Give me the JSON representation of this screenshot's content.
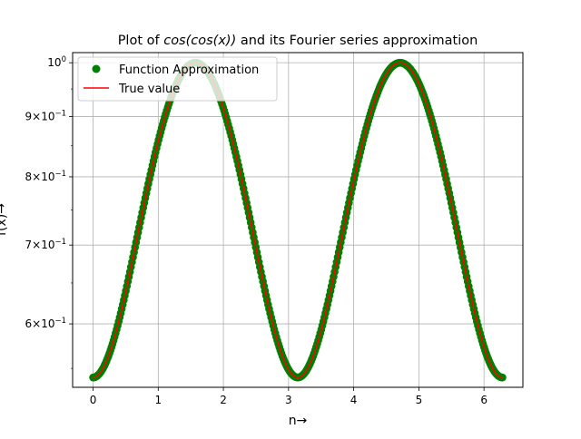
{
  "chart_data": {
    "type": "line",
    "title_prefix": "Plot of ",
    "title_math": "cos(cos(x))",
    "title_suffix": " and its Fourier series approximation",
    "xlabel": "n→",
    "ylabel": "f(x)→",
    "yscale": "log",
    "xlim": [
      -0.314,
      6.597
    ],
    "ylim": [
      0.53,
      1.02
    ],
    "grid": true,
    "legend_position": "top-left",
    "x_ticks": [
      0,
      1,
      2,
      3,
      4,
      5,
      6
    ],
    "x_tick_labels": [
      "0",
      "1",
      "2",
      "3",
      "4",
      "5",
      "6"
    ],
    "y_ticks": [
      {
        "value": 1.0,
        "base": "10",
        "exp": "0"
      },
      {
        "value": 0.9,
        "base": "9×10",
        "exp": "−1"
      },
      {
        "value": 0.8,
        "base": "8×10",
        "exp": "−1"
      },
      {
        "value": 0.7,
        "base": "7×10",
        "exp": "−1"
      },
      {
        "value": 0.6,
        "base": "6×10",
        "exp": "−1"
      }
    ],
    "x_range": [
      0,
      6.2832
    ],
    "series": [
      {
        "name": "Function Approximation",
        "color": "#008000",
        "style": "markers",
        "function": "cos(cos(x))"
      },
      {
        "name": "True value",
        "color": "#ff0000",
        "style": "line",
        "function": "cos(cos(x))"
      }
    ]
  }
}
